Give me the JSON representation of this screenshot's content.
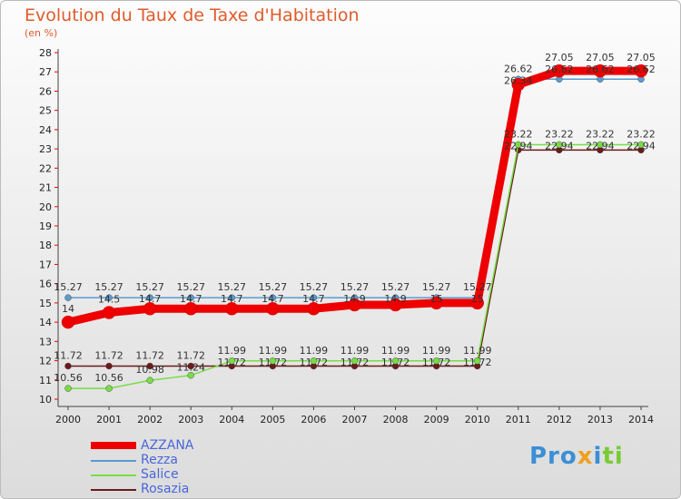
{
  "chart_data": {
    "type": "line",
    "title": "Evolution du Taux de Taxe d'Habitation",
    "ylabel": "(en %)",
    "x": [
      "2000",
      "2001",
      "2002",
      "2003",
      "2004",
      "2005",
      "2006",
      "2007",
      "2008",
      "2009",
      "2010",
      "2011",
      "2012",
      "2013",
      "2014"
    ],
    "ylim": [
      10,
      28
    ],
    "yticks": [
      10,
      11,
      12,
      13,
      14,
      15,
      16,
      17,
      18,
      19,
      20,
      21,
      22,
      23,
      24,
      25,
      26,
      27,
      28
    ],
    "grid": false,
    "legend": "bottom-left",
    "series": [
      {
        "name": "AZZANA",
        "color": "#ee0000",
        "values": [
          14,
          14.5,
          14.7,
          14.7,
          14.7,
          14.7,
          14.7,
          14.9,
          14.9,
          15,
          15,
          26.34,
          27.05,
          27.05,
          27.05
        ]
      },
      {
        "name": "Rezza",
        "color": "#5a9bd0",
        "values": [
          15.27,
          15.27,
          15.27,
          15.27,
          15.27,
          15.27,
          15.27,
          15.27,
          15.27,
          15.27,
          15.27,
          26.62,
          26.62,
          26.62,
          26.62
        ]
      },
      {
        "name": "Salice",
        "color": "#77dd44",
        "values": [
          10.56,
          10.56,
          10.98,
          11.24,
          11.99,
          11.99,
          11.99,
          11.99,
          11.99,
          11.99,
          11.99,
          23.22,
          23.22,
          23.22,
          23.22
        ]
      },
      {
        "name": "Rosazia",
        "color": "#6b1a1a",
        "values": [
          11.72,
          11.72,
          11.72,
          11.72,
          11.72,
          11.72,
          11.72,
          11.72,
          11.72,
          11.72,
          11.72,
          22.94,
          22.94,
          22.94,
          22.94
        ]
      }
    ]
  },
  "logo": "Proxiti"
}
